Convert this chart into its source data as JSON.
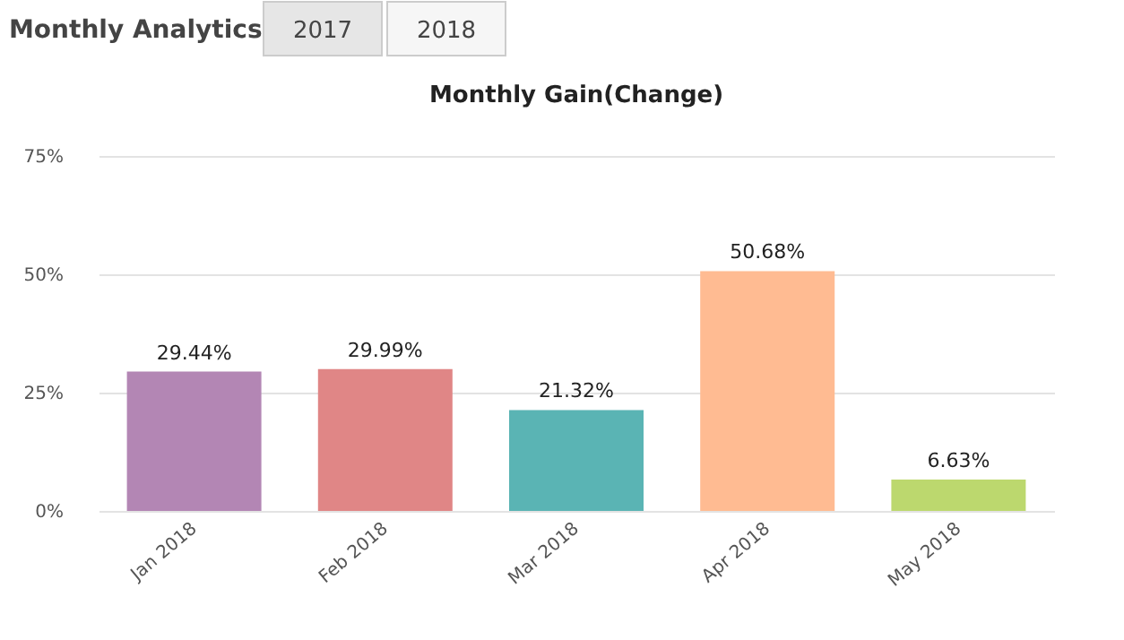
{
  "chart_data": {
    "type": "bar",
    "title": "Monthly Gain(Change)",
    "annotations": [
      "Monthly Analytics",
      "2017",
      "2018"
    ],
    "categories": [
      "Jan 2018",
      "Feb 2018",
      "Mar 2018",
      "Apr 2018",
      "May 2018"
    ],
    "values": [
      29.44,
      29.99,
      21.32,
      50.68,
      6.63
    ],
    "value_labels": [
      "29.44%",
      "29.99%",
      "21.32%",
      "50.68%",
      "6.63%"
    ],
    "colors": [
      "#b386b4",
      "#e08686",
      "#5ab4b4",
      "#ffbb92",
      "#bcd86e"
    ],
    "ylim": [
      0,
      75
    ],
    "yticks": [
      {
        "value": 0,
        "label": "0%"
      },
      {
        "value": 25,
        "label": "25%"
      },
      {
        "value": 50,
        "label": "50%"
      },
      {
        "value": 75,
        "label": "75%"
      }
    ],
    "grid": "y"
  }
}
